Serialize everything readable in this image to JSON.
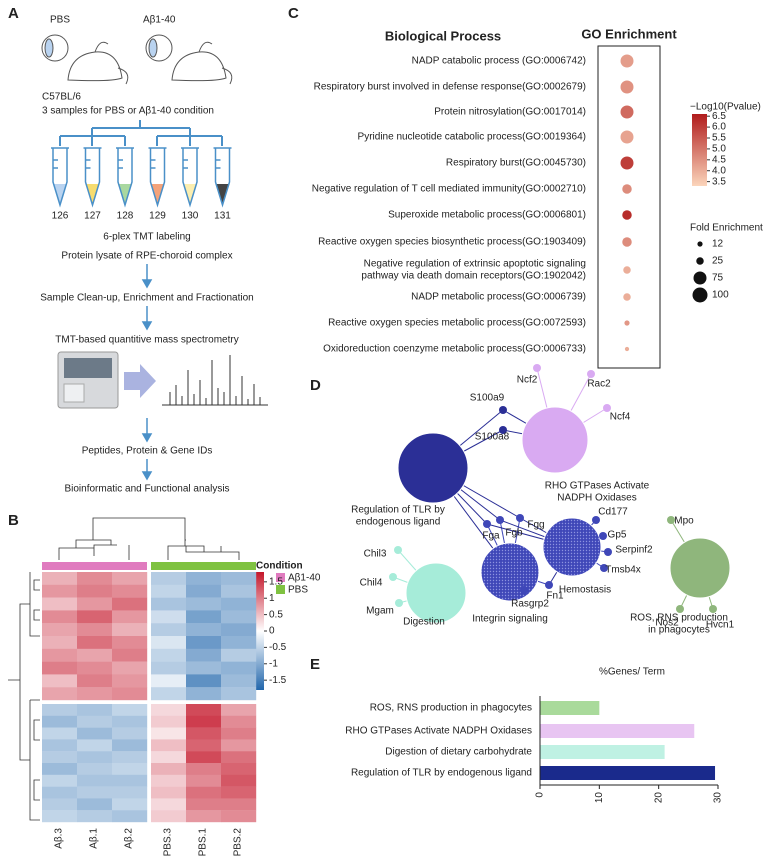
{
  "panel_labels": [
    "A",
    "B",
    "C",
    "D",
    "E"
  ],
  "workflow": {
    "conditions": [
      "PBS",
      "Aβ1-40"
    ],
    "strain": "C57BL/6",
    "samples_note": "3 samples for PBS or Aβ1-40 condition",
    "tubes": [
      "126",
      "127",
      "128",
      "129",
      "130",
      "131"
    ],
    "tube_colors": [
      "#b9d3f0",
      "#f7dc6f",
      "#a9d8a0",
      "#f4a37a",
      "#fbeeb0",
      "#444444"
    ],
    "steps": [
      "6-plex TMT labeling",
      "Protein lysate of RPE-choroid complex",
      "Sample Clean-up, Enrichment and Fractionation",
      "TMT-based quantitive mass spectrometry",
      "Peptides, Protein & Gene IDs",
      "Bioinformatic and Functional analysis"
    ]
  },
  "network": {
    "clusters": [
      {
        "label": [
          "Regulation of TLR by",
          "endogenous ligand"
        ],
        "color": "#2b2f96",
        "label_color": "#2b2f96",
        "genes": [
          "S100a9",
          "S100a8"
        ]
      },
      {
        "label": [
          "RHO GTPases Activate",
          "NADPH Oxidases"
        ],
        "color": "#d9aaf2",
        "label_color": "#c58ee8",
        "genes": [
          "Ncf2",
          "Rac2",
          "Ncf4"
        ]
      },
      {
        "label": [
          "Integrin signaling"
        ],
        "color": "#3f47b8",
        "label_color": "#777777",
        "genes": [
          "Fga",
          "Fgb",
          "Fgg",
          "Rasgrp2",
          "Fn1"
        ]
      },
      {
        "label": [
          "Hemostasis"
        ],
        "color": "#3f47b8",
        "label_color": "#777777",
        "genes": [
          "Cd177",
          "Gp5",
          "Serpinf2",
          "Tmsb4x"
        ]
      },
      {
        "label": [
          "Digestion"
        ],
        "color": "#a6ecd9",
        "label_color": "#7fd8c4",
        "genes": [
          "Chil3",
          "Chil4",
          "Mgam"
        ]
      },
      {
        "label": [
          "ROS, RNS production",
          "in phagocytes"
        ],
        "color": "#8fb67c",
        "label_color": "#8fb67c",
        "genes": [
          "Mpo",
          "Nos2",
          "Hvcn1"
        ]
      }
    ],
    "gene_color": "#c8282d"
  },
  "chart_data": [
    {
      "type": "heatmap",
      "columns": [
        "Aβ.3",
        "Aβ.1",
        "Aβ.2",
        "PBS.3",
        "PBS.1",
        "PBS.2"
      ],
      "values": [
        [
          0.6,
          0.9,
          0.7,
          -0.6,
          -0.9,
          -0.8
        ],
        [
          0.8,
          1.0,
          0.9,
          -0.5,
          -1.0,
          -0.7
        ],
        [
          0.5,
          0.8,
          1.1,
          -0.7,
          -0.8,
          -0.9
        ],
        [
          0.9,
          1.2,
          0.8,
          -0.4,
          -1.1,
          -0.8
        ],
        [
          0.7,
          0.9,
          0.6,
          -0.6,
          -0.9,
          -1.0
        ],
        [
          0.6,
          1.1,
          0.9,
          -0.3,
          -1.2,
          -0.9
        ],
        [
          0.8,
          0.7,
          1.0,
          -0.5,
          -1.0,
          -0.6
        ],
        [
          1.0,
          0.9,
          0.7,
          -0.6,
          -0.8,
          -0.9
        ],
        [
          0.5,
          1.0,
          0.8,
          -0.2,
          -1.3,
          -0.8
        ],
        [
          0.7,
          0.8,
          0.9,
          -0.5,
          -0.9,
          -0.7
        ],
        [
          -0.6,
          -0.7,
          -0.5,
          0.3,
          1.4,
          0.7
        ],
        [
          -0.8,
          -0.6,
          -0.7,
          0.4,
          1.5,
          0.9
        ],
        [
          -0.5,
          -0.8,
          -0.6,
          0.2,
          1.3,
          1.0
        ],
        [
          -0.7,
          -0.5,
          -0.8,
          0.5,
          1.2,
          0.8
        ],
        [
          -0.6,
          -0.7,
          -0.6,
          0.3,
          1.4,
          1.1
        ],
        [
          -0.8,
          -0.6,
          -0.5,
          0.6,
          1.0,
          1.2
        ],
        [
          -0.5,
          -0.7,
          -0.7,
          0.4,
          0.9,
          1.3
        ],
        [
          -0.7,
          -0.6,
          -0.6,
          0.5,
          1.1,
          1.2
        ],
        [
          -0.6,
          -0.8,
          -0.5,
          0.3,
          1.0,
          1.0
        ],
        [
          -0.5,
          -0.6,
          -0.7,
          0.4,
          0.8,
          0.9
        ]
      ],
      "legend_title": "Condition",
      "groups": [
        {
          "name": "Aβ1-40",
          "color": "#e07bbf"
        },
        {
          "name": "PBS",
          "color": "#7fc241"
        }
      ],
      "clim": [
        -1.8,
        1.8
      ],
      "colorbar_ticks": [
        1.5,
        1,
        0.5,
        0,
        -0.5,
        -1,
        -1.5
      ],
      "colors": [
        "#2166ac",
        "#ffffff",
        "#c4162a"
      ]
    },
    {
      "type": "dot",
      "title": "Biological Process",
      "subtitle": "GO Enrichment",
      "categories": [
        "NADP catabolic process (GO:0006742)",
        "Respiratory burst involved in defense response(GO:0002679)",
        "Protein nitrosylation(GO:0017014)",
        "Pyridine nucleotide catabolic process(GO:0019364)",
        "Respiratory burst(GO:0045730)",
        "Negative regulation of T cell mediated immunity(GO:0002710)",
        "Superoxide metabolic process(GO:0006801)",
        "Reactive oxygen species biosynthetic process(GO:1903409)",
        [
          "Negative regulation of extrinsic apoptotic signaling",
          "pathway via death domain receptors(GO:1902042)"
        ],
        "NADP metabolic process(GO:0006739)",
        "Reactive oxygen species metabolic process(GO:0072593)",
        "Oxidoreduction coenzyme metabolic process(GO:0006733)"
      ],
      "values": [
        4.3,
        4.5,
        5.2,
        4.2,
        6.0,
        4.6,
        6.3,
        4.6,
        4.0,
        4.0,
        4.4,
        4.0
      ],
      "sizes": [
        75,
        75,
        75,
        75,
        75,
        40,
        40,
        40,
        25,
        25,
        12,
        8
      ],
      "color_legend_title": "−Log10(Pvalue)",
      "clim": [
        3.3,
        6.6
      ],
      "color_ticks": [
        6.5,
        {
          "value": 6,
          "label": "6.0"
        },
        5.5,
        {
          "value": 5,
          "label": "5.0"
        },
        4.5,
        {
          "value": 4,
          "label": "4.0"
        },
        3.5
      ],
      "colors": [
        "#fbd5bb",
        "#b01c1c"
      ],
      "size_legend_title": "Fold Enrichment",
      "size_ticks": [
        12,
        25,
        75,
        100
      ]
    },
    {
      "type": "bar",
      "orientation": "horizontal",
      "title": "%Genes/ Term",
      "categories": [
        "ROS, RNS production in phagocytes",
        "RHO GTPases Activate NADPH Oxidases",
        "Digestion of dietary carbohydrate",
        "Regulation of TLR by endogenous ligand"
      ],
      "values": [
        10,
        26,
        21,
        29.5
      ],
      "colors": [
        "#a9da9b",
        "#e8c5f2",
        "#bff1e3",
        "#1a2a8c"
      ],
      "xlim": [
        0,
        30
      ],
      "xticks": [
        0,
        10,
        20,
        30
      ]
    }
  ]
}
